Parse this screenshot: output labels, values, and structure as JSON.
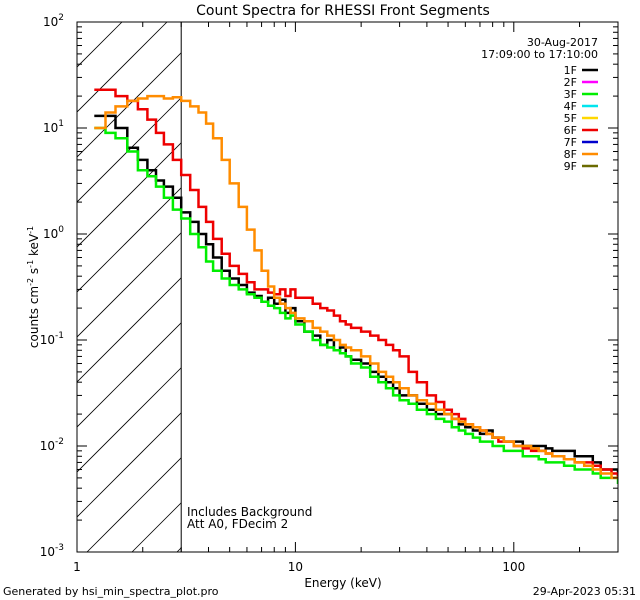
{
  "chart_data": {
    "type": "line",
    "title": "Count Spectra for RHESSI Front Segments",
    "xlabel": "Energy (keV)",
    "ylabel_parts": {
      "base": "counts cm",
      "exp1": "-2",
      "mid1": " s",
      "exp2": "-1",
      "mid2": " keV",
      "exp3": "-1"
    },
    "xscale": "log",
    "yscale": "log",
    "xlim": [
      1,
      300
    ],
    "ylim": [
      0.001,
      100
    ],
    "x_ticks": [
      {
        "value": 1,
        "label": "1"
      },
      {
        "value": 10,
        "label": "10"
      },
      {
        "value": 100,
        "label": "100"
      }
    ],
    "y_ticks": [
      {
        "value": 0.001,
        "base": "10",
        "exp": "-3"
      },
      {
        "value": 0.01,
        "base": "10",
        "exp": "-2"
      },
      {
        "value": 0.1,
        "base": "10",
        "exp": "-1"
      },
      {
        "value": 1,
        "base": "10",
        "exp": "0"
      },
      {
        "value": 10,
        "base": "10",
        "exp": "1"
      },
      {
        "value": 100,
        "base": "10",
        "exp": "2"
      }
    ],
    "hatched_region": {
      "from": 1,
      "to": 3
    },
    "date": "30-Aug-2017",
    "time_range": "17:09:00 to 17:10:00",
    "annotations": [
      "Includes Background",
      "Att A0, FDecim 2"
    ],
    "legend": [
      {
        "label": "1F",
        "color": "#000000"
      },
      {
        "label": "2F",
        "color": "#ff00ff"
      },
      {
        "label": "3F",
        "color": "#00ee00"
      },
      {
        "label": "4F",
        "color": "#00e5ee"
      },
      {
        "label": "5F",
        "color": "#ffd700"
      },
      {
        "label": "6F",
        "color": "#ee0000"
      },
      {
        "label": "7F",
        "color": "#0000cd"
      },
      {
        "label": "8F",
        "color": "#ff8c00"
      },
      {
        "label": "9F",
        "color": "#6b6b00"
      }
    ],
    "series": [
      {
        "name": "1F",
        "color": "#000000",
        "points": [
          [
            1.2,
            13
          ],
          [
            1.35,
            13
          ],
          [
            1.5,
            10
          ],
          [
            1.7,
            6.5
          ],
          [
            1.9,
            5
          ],
          [
            2.1,
            4
          ],
          [
            2.3,
            3.2
          ],
          [
            2.5,
            2.8
          ],
          [
            2.75,
            2.2
          ],
          [
            3.0,
            1.6
          ],
          [
            3.3,
            1.3
          ],
          [
            3.6,
            1.0
          ],
          [
            3.9,
            0.8
          ],
          [
            4.2,
            0.6
          ],
          [
            4.6,
            0.45
          ],
          [
            5.0,
            0.38
          ],
          [
            5.5,
            0.33
          ],
          [
            6.0,
            0.28
          ],
          [
            6.5,
            0.26
          ],
          [
            7.0,
            0.23
          ],
          [
            7.5,
            0.25
          ],
          [
            8.0,
            0.22
          ],
          [
            8.5,
            0.24
          ],
          [
            9.0,
            0.18
          ],
          [
            9.5,
            0.2
          ],
          [
            10,
            0.15
          ],
          [
            11,
            0.12
          ],
          [
            12,
            0.11
          ],
          [
            13,
            0.09
          ],
          [
            14,
            0.1
          ],
          [
            15,
            0.08
          ],
          [
            16,
            0.085
          ],
          [
            17,
            0.07
          ],
          [
            18,
            0.065
          ],
          [
            20,
            0.06
          ],
          [
            22,
            0.05
          ],
          [
            24,
            0.045
          ],
          [
            26,
            0.04
          ],
          [
            28,
            0.035
          ],
          [
            30,
            0.03
          ],
          [
            33,
            0.03
          ],
          [
            36,
            0.025
          ],
          [
            40,
            0.022
          ],
          [
            44,
            0.02
          ],
          [
            48,
            0.02
          ],
          [
            52,
            0.018
          ],
          [
            56,
            0.016
          ],
          [
            60,
            0.015
          ],
          [
            65,
            0.014
          ],
          [
            70,
            0.013
          ],
          [
            75,
            0.014
          ],
          [
            80,
            0.012
          ],
          [
            85,
            0.012
          ],
          [
            90,
            0.011
          ],
          [
            100,
            0.011
          ],
          [
            110,
            0.01
          ],
          [
            120,
            0.01
          ],
          [
            130,
            0.01
          ],
          [
            140,
            0.0095
          ],
          [
            150,
            0.009
          ],
          [
            170,
            0.009
          ],
          [
            190,
            0.008
          ],
          [
            210,
            0.008
          ],
          [
            230,
            0.007
          ],
          [
            250,
            0.006
          ],
          [
            280,
            0.006
          ],
          [
            300,
            0.005
          ]
        ]
      },
      {
        "name": "3F",
        "color": "#00ee00",
        "points": [
          [
            1.2,
            10
          ],
          [
            1.35,
            9
          ],
          [
            1.5,
            8
          ],
          [
            1.7,
            6
          ],
          [
            1.9,
            4
          ],
          [
            2.1,
            3.5
          ],
          [
            2.3,
            2.8
          ],
          [
            2.5,
            2.2
          ],
          [
            2.75,
            1.7
          ],
          [
            3.0,
            1.4
          ],
          [
            3.3,
            1.0
          ],
          [
            3.6,
            0.75
          ],
          [
            3.9,
            0.55
          ],
          [
            4.2,
            0.45
          ],
          [
            4.6,
            0.38
          ],
          [
            5.0,
            0.33
          ],
          [
            5.5,
            0.3
          ],
          [
            6.0,
            0.27
          ],
          [
            6.5,
            0.25
          ],
          [
            7.0,
            0.23
          ],
          [
            7.5,
            0.21
          ],
          [
            8.0,
            0.2
          ],
          [
            8.5,
            0.18
          ],
          [
            9.0,
            0.16
          ],
          [
            9.5,
            0.17
          ],
          [
            10,
            0.14
          ],
          [
            11,
            0.12
          ],
          [
            12,
            0.1
          ],
          [
            13,
            0.09
          ],
          [
            14,
            0.085
          ],
          [
            15,
            0.08
          ],
          [
            16,
            0.075
          ],
          [
            17,
            0.07
          ],
          [
            18,
            0.06
          ],
          [
            20,
            0.055
          ],
          [
            22,
            0.045
          ],
          [
            24,
            0.04
          ],
          [
            26,
            0.035
          ],
          [
            28,
            0.03
          ],
          [
            30,
            0.027
          ],
          [
            33,
            0.025
          ],
          [
            36,
            0.022
          ],
          [
            40,
            0.02
          ],
          [
            44,
            0.018
          ],
          [
            48,
            0.017
          ],
          [
            52,
            0.015
          ],
          [
            56,
            0.014
          ],
          [
            60,
            0.013
          ],
          [
            65,
            0.012
          ],
          [
            70,
            0.011
          ],
          [
            75,
            0.011
          ],
          [
            80,
            0.01
          ],
          [
            85,
            0.01
          ],
          [
            90,
            0.009
          ],
          [
            100,
            0.009
          ],
          [
            110,
            0.008
          ],
          [
            120,
            0.008
          ],
          [
            130,
            0.0075
          ],
          [
            140,
            0.007
          ],
          [
            150,
            0.007
          ],
          [
            170,
            0.0065
          ],
          [
            190,
            0.006
          ],
          [
            210,
            0.006
          ],
          [
            230,
            0.0055
          ],
          [
            250,
            0.005
          ],
          [
            280,
            0.005
          ],
          [
            300,
            0.0045
          ]
        ]
      },
      {
        "name": "6F",
        "color": "#ee0000",
        "points": [
          [
            1.2,
            23
          ],
          [
            1.35,
            23
          ],
          [
            1.5,
            20
          ],
          [
            1.7,
            18
          ],
          [
            1.9,
            15
          ],
          [
            2.1,
            12
          ],
          [
            2.3,
            9
          ],
          [
            2.5,
            7
          ],
          [
            2.75,
            5
          ],
          [
            3.0,
            3.6
          ],
          [
            3.3,
            2.6
          ],
          [
            3.6,
            1.8
          ],
          [
            3.9,
            1.3
          ],
          [
            4.2,
            0.9
          ],
          [
            4.6,
            0.65
          ],
          [
            5.0,
            0.5
          ],
          [
            5.5,
            0.42
          ],
          [
            6.0,
            0.35
          ],
          [
            6.5,
            0.3
          ],
          [
            7.0,
            0.3
          ],
          [
            7.5,
            0.28
          ],
          [
            8.0,
            0.27
          ],
          [
            8.5,
            0.3
          ],
          [
            9.0,
            0.26
          ],
          [
            9.5,
            0.3
          ],
          [
            10,
            0.25
          ],
          [
            11,
            0.25
          ],
          [
            12,
            0.22
          ],
          [
            13,
            0.2
          ],
          [
            14,
            0.19
          ],
          [
            15,
            0.17
          ],
          [
            16,
            0.15
          ],
          [
            17,
            0.14
          ],
          [
            18,
            0.13
          ],
          [
            20,
            0.12
          ],
          [
            22,
            0.11
          ],
          [
            24,
            0.1
          ],
          [
            26,
            0.09
          ],
          [
            28,
            0.08
          ],
          [
            30,
            0.07
          ],
          [
            33,
            0.05
          ],
          [
            36,
            0.04
          ],
          [
            40,
            0.03
          ],
          [
            44,
            0.026
          ],
          [
            48,
            0.022
          ],
          [
            52,
            0.02
          ],
          [
            56,
            0.018
          ],
          [
            60,
            0.016
          ],
          [
            65,
            0.015
          ],
          [
            70,
            0.014
          ],
          [
            75,
            0.013
          ],
          [
            80,
            0.012
          ],
          [
            85,
            0.011
          ],
          [
            90,
            0.011
          ],
          [
            100,
            0.01
          ],
          [
            110,
            0.0095
          ],
          [
            120,
            0.009
          ],
          [
            130,
            0.009
          ],
          [
            140,
            0.0085
          ],
          [
            150,
            0.008
          ],
          [
            170,
            0.0075
          ],
          [
            190,
            0.007
          ],
          [
            210,
            0.007
          ],
          [
            230,
            0.0065
          ],
          [
            250,
            0.006
          ],
          [
            280,
            0.0055
          ],
          [
            300,
            0.005
          ]
        ]
      },
      {
        "name": "8F",
        "color": "#ff8c00",
        "points": [
          [
            1.2,
            10
          ],
          [
            1.35,
            14
          ],
          [
            1.5,
            16
          ],
          [
            1.7,
            18
          ],
          [
            1.9,
            19
          ],
          [
            2.1,
            20
          ],
          [
            2.3,
            20
          ],
          [
            2.5,
            19
          ],
          [
            2.75,
            19.5
          ],
          [
            3.0,
            18
          ],
          [
            3.3,
            16
          ],
          [
            3.6,
            14
          ],
          [
            3.9,
            11
          ],
          [
            4.2,
            8
          ],
          [
            4.6,
            5
          ],
          [
            5.0,
            3
          ],
          [
            5.5,
            1.8
          ],
          [
            6.0,
            1.1
          ],
          [
            6.5,
            0.7
          ],
          [
            7.0,
            0.45
          ],
          [
            7.5,
            0.32
          ],
          [
            8.0,
            0.25
          ],
          [
            8.5,
            0.22
          ],
          [
            9.0,
            0.2
          ],
          [
            9.5,
            0.18
          ],
          [
            10,
            0.16
          ],
          [
            11,
            0.15
          ],
          [
            12,
            0.13
          ],
          [
            13,
            0.12
          ],
          [
            14,
            0.11
          ],
          [
            15,
            0.1
          ],
          [
            16,
            0.09
          ],
          [
            17,
            0.085
          ],
          [
            18,
            0.08
          ],
          [
            20,
            0.07
          ],
          [
            22,
            0.06
          ],
          [
            24,
            0.05
          ],
          [
            26,
            0.045
          ],
          [
            28,
            0.04
          ],
          [
            30,
            0.035
          ],
          [
            33,
            0.03
          ],
          [
            36,
            0.027
          ],
          [
            40,
            0.025
          ],
          [
            44,
            0.022
          ],
          [
            48,
            0.02
          ],
          [
            52,
            0.018
          ],
          [
            56,
            0.017
          ],
          [
            60,
            0.016
          ],
          [
            65,
            0.015
          ],
          [
            70,
            0.014
          ],
          [
            75,
            0.013
          ],
          [
            80,
            0.012
          ],
          [
            85,
            0.012
          ],
          [
            90,
            0.011
          ],
          [
            100,
            0.01
          ],
          [
            110,
            0.01
          ],
          [
            120,
            0.0095
          ],
          [
            130,
            0.009
          ],
          [
            140,
            0.0085
          ],
          [
            150,
            0.008
          ],
          [
            170,
            0.0075
          ],
          [
            190,
            0.007
          ],
          [
            210,
            0.0065
          ],
          [
            230,
            0.006
          ],
          [
            250,
            0.0055
          ],
          [
            280,
            0.005
          ],
          [
            300,
            0.005
          ]
        ]
      }
    ]
  },
  "footer": {
    "generated_by": "Generated by hsi_min_spectra_plot.pro",
    "timestamp": "29-Apr-2023 05:31"
  }
}
